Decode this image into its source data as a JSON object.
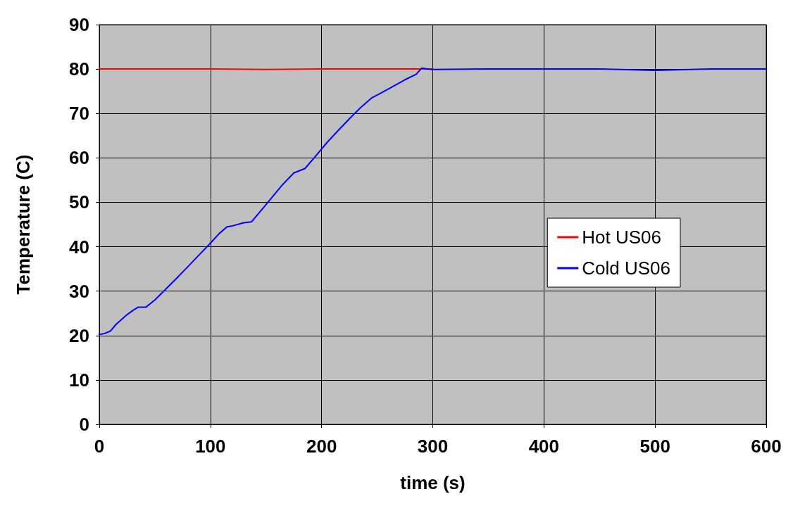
{
  "chart_data": {
    "type": "line",
    "xlabel": "time (s)",
    "ylabel": "Temperature (C)",
    "xlim": [
      0,
      600
    ],
    "xticks": [
      0,
      100,
      200,
      300,
      400,
      500,
      600
    ],
    "ylim": [
      0,
      90
    ],
    "yticks": [
      0,
      10,
      20,
      30,
      40,
      50,
      60,
      70,
      80,
      90
    ],
    "grid": true,
    "legend": "right",
    "marker": "none",
    "line_style": "solid",
    "series": [
      {
        "name": "Hot US06",
        "color": "#ff0000",
        "x": [
          0,
          50,
          100,
          150,
          200,
          250,
          300
        ],
        "values": [
          80,
          80,
          80,
          79.9,
          80,
          80,
          80
        ]
      },
      {
        "name": "Cold US06",
        "color": "#0000ff",
        "x": [
          0,
          5,
          10,
          15,
          20,
          25,
          30,
          35,
          42,
          50,
          60,
          70,
          80,
          90,
          100,
          108,
          115,
          120,
          130,
          137,
          145,
          155,
          165,
          175,
          185,
          195,
          205,
          215,
          225,
          235,
          245,
          255,
          265,
          275,
          285,
          290,
          295,
          300,
          350,
          400,
          450,
          500,
          550,
          600
        ],
        "values": [
          20.2,
          20.5,
          21,
          22.5,
          23.6,
          24.7,
          25.6,
          26.4,
          26.4,
          28,
          30.5,
          33,
          35.6,
          38.2,
          40.8,
          43,
          44.5,
          44.7,
          45.4,
          45.6,
          48,
          51,
          54,
          56.6,
          57.6,
          60.5,
          63.5,
          66.2,
          68.8,
          71.3,
          73.5,
          74.8,
          76.2,
          77.6,
          78.8,
          80.2,
          80,
          79.9,
          80,
          80,
          80,
          79.7,
          80,
          80
        ]
      }
    ]
  }
}
